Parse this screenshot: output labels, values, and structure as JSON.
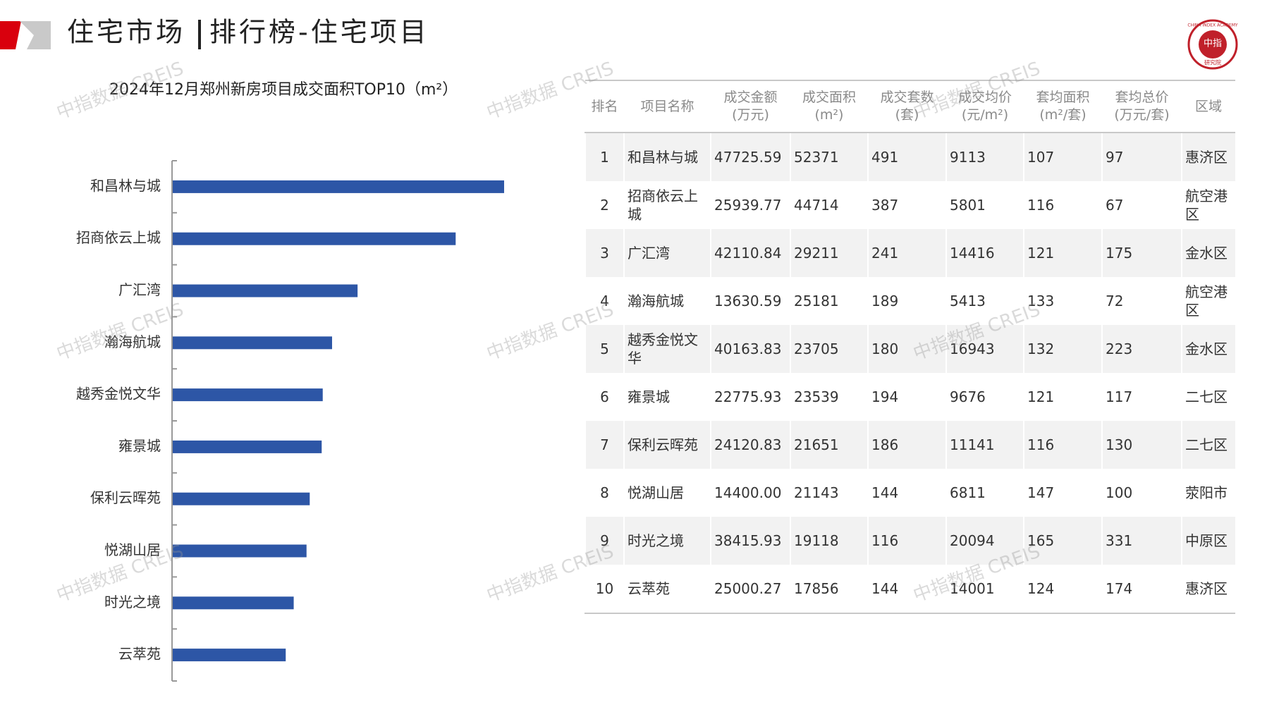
{
  "header": {
    "section": "住宅市场",
    "title": "排行榜-住宅项目",
    "logo": {
      "center": "中指",
      "ring": "CHINA INDEX ACADEMY",
      "bottom": "研究院"
    }
  },
  "watermark": "中指数据 CREIS",
  "chart_data": {
    "type": "bar",
    "orientation": "horizontal",
    "title": "2024年12月郑州新房项目成交面积TOP10（m²）",
    "categories": [
      "和昌林与城",
      "招商依云上城",
      "广汇湾",
      "瀚海航城",
      "越秀金悦文华",
      "雍景城",
      "保利云晖苑",
      "悦湖山居",
      "时光之境",
      "云萃苑"
    ],
    "values": [
      52371,
      44714,
      29211,
      25181,
      23705,
      23539,
      21651,
      21143,
      19118,
      17856
    ],
    "color": "#2d56a6"
  },
  "table": {
    "headers": [
      "排名",
      "项目名称",
      "成交金额\n(万元)",
      "成交面积\n(m²)",
      "成交套数\n(套)",
      "成交均价\n(元/m²)",
      "套均面积\n(m²/套)",
      "套均总价\n(万元/套)",
      "区域"
    ],
    "rows": [
      [
        "1",
        "和昌林与城",
        "47725.59",
        "52371",
        "491",
        "9113",
        "107",
        "97",
        "惠济区"
      ],
      [
        "2",
        "招商依云上城",
        "25939.77",
        "44714",
        "387",
        "5801",
        "116",
        "67",
        "航空港区"
      ],
      [
        "3",
        "广汇湾",
        "42110.84",
        "29211",
        "241",
        "14416",
        "121",
        "175",
        "金水区"
      ],
      [
        "4",
        "瀚海航城",
        "13630.59",
        "25181",
        "189",
        "5413",
        "133",
        "72",
        "航空港区"
      ],
      [
        "5",
        "越秀金悦文华",
        "40163.83",
        "23705",
        "180",
        "16943",
        "132",
        "223",
        "金水区"
      ],
      [
        "6",
        "雍景城",
        "22775.93",
        "23539",
        "194",
        "9676",
        "121",
        "117",
        "二七区"
      ],
      [
        "7",
        "保利云晖苑",
        "24120.83",
        "21651",
        "186",
        "11141",
        "116",
        "130",
        "二七区"
      ],
      [
        "8",
        "悦湖山居",
        "14400.00",
        "21143",
        "144",
        "6811",
        "147",
        "100",
        "荥阳市"
      ],
      [
        "9",
        "时光之境",
        "38415.93",
        "19118",
        "116",
        "20094",
        "165",
        "331",
        "中原区"
      ],
      [
        "10",
        "云萃苑",
        "25000.27",
        "17856",
        "144",
        "14001",
        "124",
        "174",
        "惠济区"
      ]
    ]
  }
}
